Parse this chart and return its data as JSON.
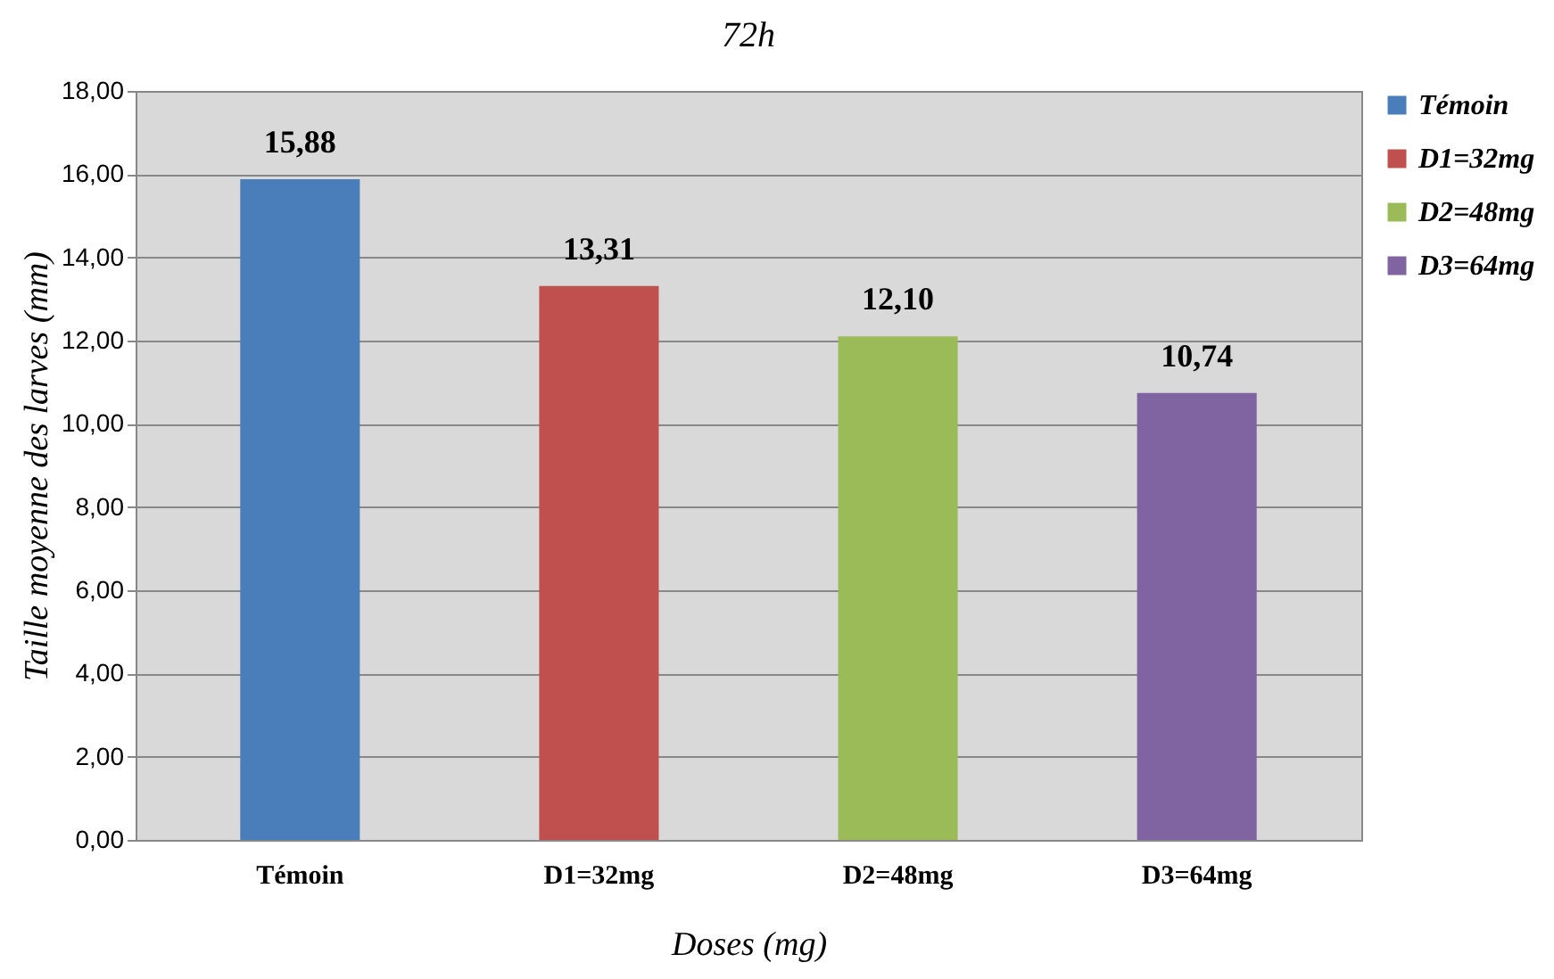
{
  "chart_data": {
    "type": "bar",
    "title": "72h",
    "xlabel": "Doses (mg)",
    "ylabel": "Taille moyenne des larves (mm)",
    "categories": [
      "Témoin",
      "D1=32mg",
      "D2=48mg",
      "D3=64mg"
    ],
    "series": [
      {
        "name": "Témoin",
        "color": "#4a7ebb",
        "values": [
          15.88,
          null,
          null,
          null
        ],
        "value_labels": [
          "15,88",
          null,
          null,
          null
        ]
      },
      {
        "name": "D1=32mg",
        "color": "#c0504d",
        "values": [
          null,
          13.31,
          null,
          null
        ],
        "value_labels": [
          null,
          "13,31",
          null,
          null
        ]
      },
      {
        "name": "D2=48mg",
        "color": "#9bbb59",
        "values": [
          null,
          null,
          12.1,
          null
        ],
        "value_labels": [
          null,
          null,
          "12,10",
          null
        ]
      },
      {
        "name": "D3=64mg",
        "color": "#8064a2",
        "values": [
          null,
          null,
          null,
          10.74
        ],
        "value_labels": [
          null,
          null,
          null,
          "10,74"
        ]
      }
    ],
    "ylim": [
      0,
      18
    ],
    "yticks": [
      {
        "value": 0,
        "label": "0,00"
      },
      {
        "value": 2,
        "label": "2,00"
      },
      {
        "value": 4,
        "label": "4,00"
      },
      {
        "value": 6,
        "label": "6,00"
      },
      {
        "value": 8,
        "label": "8,00"
      },
      {
        "value": 10,
        "label": "10,00"
      },
      {
        "value": 12,
        "label": "12,00"
      },
      {
        "value": 14,
        "label": "14,00"
      },
      {
        "value": 16,
        "label": "16,00"
      },
      {
        "value": 18,
        "label": "18,00"
      }
    ],
    "grid": "y",
    "legend": "right"
  }
}
